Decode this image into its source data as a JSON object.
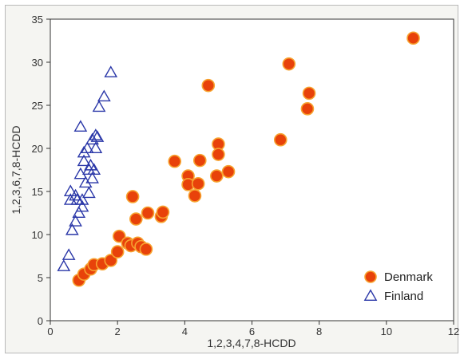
{
  "chart_data": {
    "type": "scatter",
    "title": "",
    "xlabel": "1,2,3,4,7,8-HCDD",
    "ylabel": "1,2,3,6,7,8-HCDD",
    "xlim": [
      0,
      12
    ],
    "ylim": [
      0,
      35
    ],
    "xticks": [
      0,
      2,
      4,
      6,
      8,
      10,
      12
    ],
    "yticks": [
      0,
      5,
      10,
      15,
      20,
      25,
      30,
      35
    ],
    "grid": false,
    "legend_position": "bottom-right",
    "series": [
      {
        "name": "Denmark",
        "marker": "circle",
        "color": "#e8420a",
        "edge_color": "#f7a330",
        "points": [
          [
            0.85,
            4.7
          ],
          [
            1.0,
            5.4
          ],
          [
            1.2,
            6.0
          ],
          [
            1.3,
            6.5
          ],
          [
            1.55,
            6.6
          ],
          [
            1.8,
            7.0
          ],
          [
            2.0,
            8.0
          ],
          [
            2.05,
            9.8
          ],
          [
            2.3,
            9.0
          ],
          [
            2.4,
            8.7
          ],
          [
            2.45,
            14.4
          ],
          [
            2.55,
            11.8
          ],
          [
            2.6,
            9.0
          ],
          [
            2.7,
            8.6
          ],
          [
            2.85,
            8.3
          ],
          [
            2.9,
            12.5
          ],
          [
            3.3,
            12.1
          ],
          [
            3.35,
            12.6
          ],
          [
            3.7,
            18.5
          ],
          [
            4.1,
            16.8
          ],
          [
            4.1,
            15.8
          ],
          [
            4.3,
            14.5
          ],
          [
            4.4,
            15.9
          ],
          [
            4.45,
            18.6
          ],
          [
            4.7,
            27.3
          ],
          [
            4.95,
            16.8
          ],
          [
            5.0,
            20.5
          ],
          [
            5.0,
            19.3
          ],
          [
            5.3,
            17.3
          ],
          [
            6.85,
            21.0
          ],
          [
            7.1,
            29.8
          ],
          [
            7.65,
            24.6
          ],
          [
            7.7,
            26.4
          ],
          [
            10.8,
            32.8
          ]
        ]
      },
      {
        "name": "Finland",
        "marker": "triangle-open",
        "color": "#2a37a8",
        "points": [
          [
            0.4,
            6.3
          ],
          [
            0.55,
            7.6
          ],
          [
            0.6,
            15.0
          ],
          [
            0.6,
            14.0
          ],
          [
            0.65,
            10.5
          ],
          [
            0.75,
            14.5
          ],
          [
            0.75,
            11.5
          ],
          [
            0.8,
            14.0
          ],
          [
            0.85,
            12.5
          ],
          [
            0.9,
            22.5
          ],
          [
            0.9,
            17.0
          ],
          [
            0.95,
            13.2
          ],
          [
            0.95,
            14.0
          ],
          [
            1.0,
            18.5
          ],
          [
            1.0,
            19.5
          ],
          [
            1.05,
            16.0
          ],
          [
            1.1,
            20.0
          ],
          [
            1.15,
            17.5
          ],
          [
            1.15,
            14.8
          ],
          [
            1.2,
            18.0
          ],
          [
            1.25,
            16.5
          ],
          [
            1.25,
            21.0
          ],
          [
            1.3,
            17.5
          ],
          [
            1.35,
            20.0
          ],
          [
            1.35,
            21.5
          ],
          [
            1.4,
            21.3
          ],
          [
            1.45,
            24.8
          ],
          [
            1.6,
            26.0
          ],
          [
            1.8,
            28.8
          ]
        ]
      }
    ]
  }
}
